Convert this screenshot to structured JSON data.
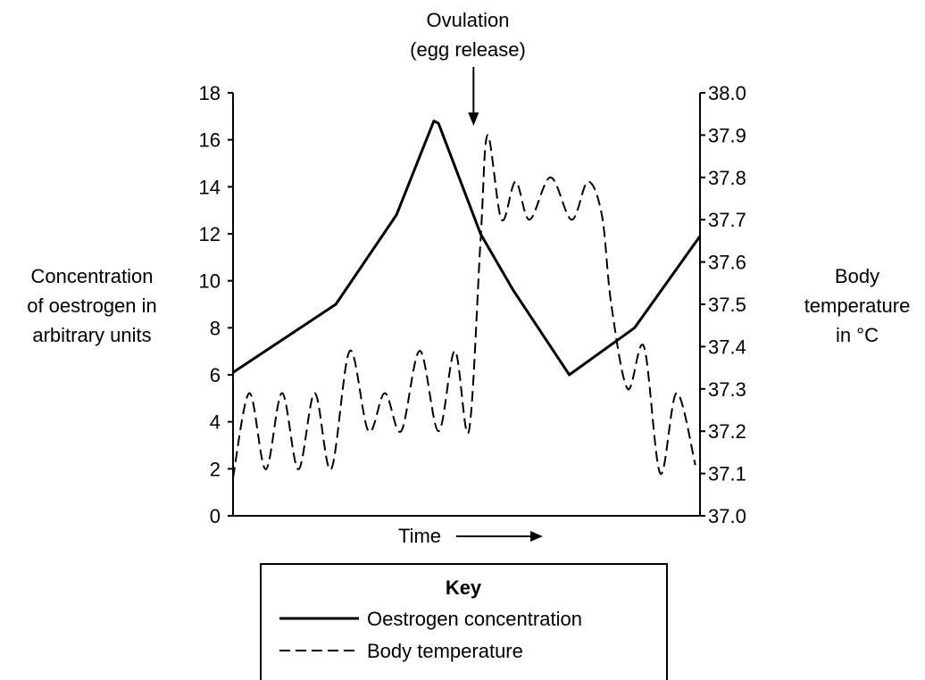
{
  "chart_data": {
    "type": "line",
    "xlabel": "Time",
    "ylabel_left": [
      "Concentration",
      "of oestrogen in",
      "arbitrary units"
    ],
    "ylabel_right": [
      "Body",
      "temperature",
      "in °C"
    ],
    "ylim_left": [
      0,
      18
    ],
    "ylim_right": [
      37.0,
      38.0
    ],
    "yticks_left": [
      "0",
      "2",
      "4",
      "6",
      "8",
      "10",
      "12",
      "14",
      "16",
      "18"
    ],
    "yticks_right": [
      "37.0",
      "37.1",
      "37.2",
      "37.3",
      "37.4",
      "37.5",
      "37.6",
      "37.7",
      "37.8",
      "37.9",
      "38.0"
    ],
    "xlim": [
      0,
      100
    ],
    "grid": false,
    "annotation": {
      "lines": [
        "Ovulation",
        "(egg release)"
      ],
      "x": 51.5
    },
    "key": {
      "title": "Key",
      "entries": [
        "Oestrogen concentration",
        "Body temperature"
      ]
    },
    "series": [
      {
        "name": "Oestrogen concentration",
        "axis": "left",
        "style": "solid",
        "points": [
          [
            0,
            6.1
          ],
          [
            22,
            9.0
          ],
          [
            35,
            12.8
          ],
          [
            43,
            16.8
          ],
          [
            44,
            16.7
          ],
          [
            53,
            12.0
          ],
          [
            60,
            9.6
          ],
          [
            72,
            6.0
          ],
          [
            86,
            8.0
          ],
          [
            100,
            11.9
          ]
        ]
      },
      {
        "name": "Body temperature",
        "axis": "right",
        "style": "dashed",
        "points": [
          [
            0,
            37.09
          ],
          [
            3.5,
            37.29
          ],
          [
            7,
            37.11
          ],
          [
            10.5,
            37.29
          ],
          [
            14,
            37.11
          ],
          [
            17.5,
            37.29
          ],
          [
            21,
            37.11
          ],
          [
            25,
            37.39
          ],
          [
            29,
            37.2
          ],
          [
            32.5,
            37.29
          ],
          [
            36,
            37.2
          ],
          [
            40,
            37.39
          ],
          [
            44,
            37.2
          ],
          [
            47.5,
            37.39
          ],
          [
            50.5,
            37.2
          ],
          [
            53,
            37.65
          ],
          [
            54.5,
            37.9
          ],
          [
            57.5,
            37.7
          ],
          [
            60.5,
            37.79
          ],
          [
            63.5,
            37.7
          ],
          [
            68,
            37.8
          ],
          [
            72.5,
            37.7
          ],
          [
            76,
            37.79
          ],
          [
            79,
            37.71
          ],
          [
            81,
            37.5
          ],
          [
            84.5,
            37.3
          ],
          [
            88,
            37.4
          ],
          [
            91.5,
            37.1
          ],
          [
            95,
            37.29
          ],
          [
            99,
            37.12
          ]
        ]
      }
    ]
  }
}
